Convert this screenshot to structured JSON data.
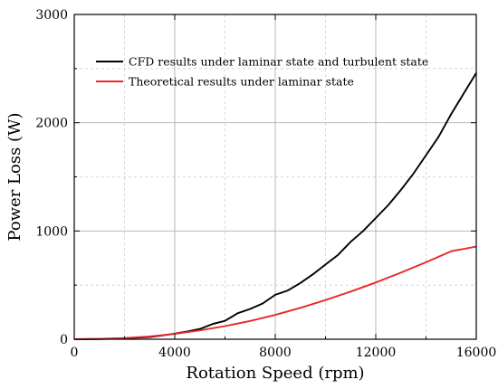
{
  "chart_data": {
    "type": "line",
    "xlabel": "Rotation Speed (rpm)",
    "ylabel": "Power Loss (W)",
    "xlim": [
      0,
      16000
    ],
    "ylim": [
      0,
      3000
    ],
    "xticks": [
      "0",
      "4000",
      "8000",
      "12000",
      "16000"
    ],
    "yticks": [
      "0",
      "1000",
      "2000",
      "3000"
    ],
    "grid": true,
    "legend_position": "top-right",
    "series": [
      {
        "name": "CFD results under laminar state and turbulent state",
        "color": "#000000",
        "x": [
          0,
          1000,
          2000,
          3000,
          3500,
          4000,
          4500,
          5000,
          5500,
          6000,
          6500,
          7000,
          7500,
          8000,
          8500,
          9000,
          9500,
          10000,
          10500,
          11000,
          11500,
          12000,
          12500,
          13000,
          13500,
          14000,
          14500,
          15000,
          15500,
          16000
        ],
        "y": [
          0,
          2,
          8,
          20,
          35,
          52,
          72,
          95,
          140,
          170,
          240,
          280,
          330,
          410,
          450,
          520,
          600,
          690,
          780,
          900,
          1000,
          1120,
          1240,
          1380,
          1530,
          1700,
          1870,
          2080,
          2270,
          2460
        ]
      },
      {
        "name": "Theoretical  results  under laminar state",
        "color": "#e8282a",
        "x": [
          0,
          1000,
          2000,
          3000,
          4000,
          5000,
          6000,
          7000,
          8000,
          9000,
          10000,
          11000,
          12000,
          13000,
          14000,
          15000,
          16000
        ],
        "y": [
          0,
          3,
          11,
          26,
          49,
          82,
          121,
          169,
          225,
          290,
          362,
          440,
          524,
          615,
          711,
          813,
          856
        ]
      }
    ]
  }
}
